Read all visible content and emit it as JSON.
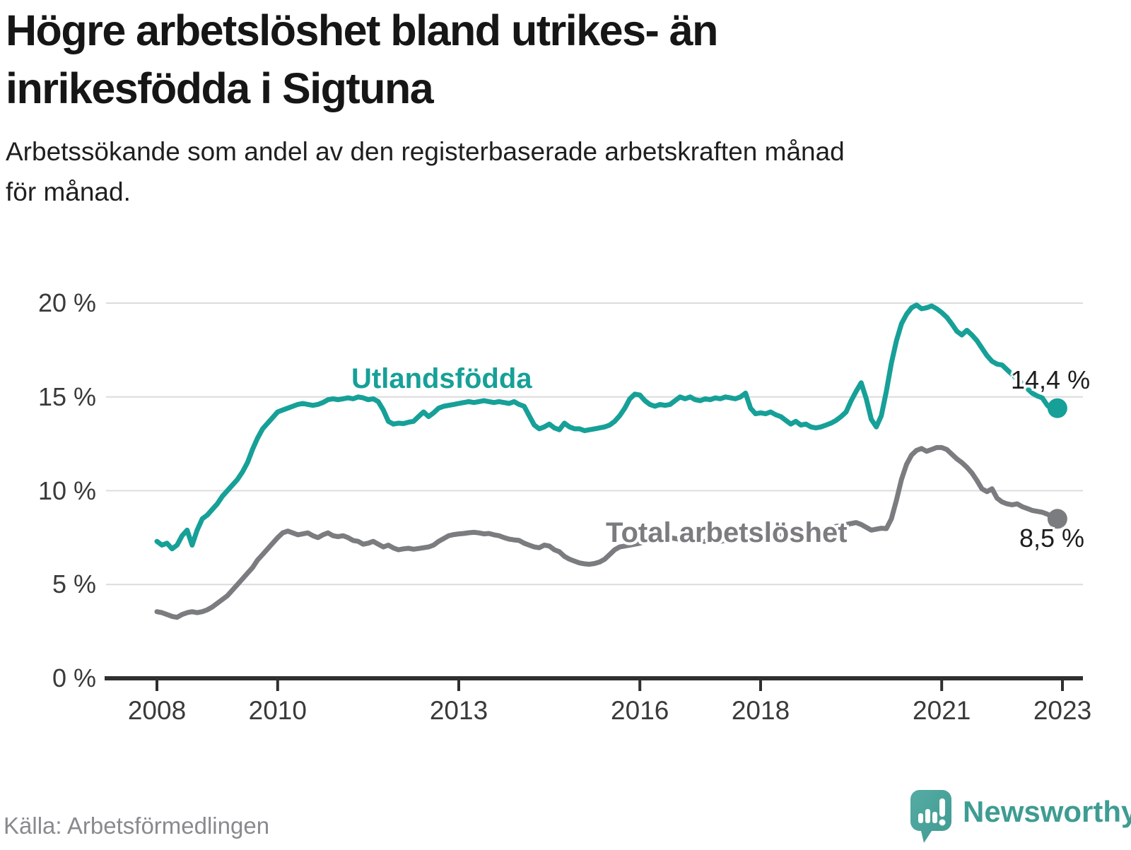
{
  "header": {
    "title_lines": [
      "Högre arbetslöshet bland utrikes- än",
      "inrikesfödda i Sigtuna"
    ],
    "subtitle_lines": [
      "Arbetssökande som andel av den registerbaserade arbetskraften månad",
      "för månad."
    ]
  },
  "footer": {
    "source": "Källa: Arbetsförmedlingen",
    "brand_name": "Newsworthy"
  },
  "chart_data": {
    "type": "line",
    "title": "Högre arbetslöshet bland utrikes- än inrikesfödda i Sigtuna",
    "subtitle": "Arbetssökande som andel av den registerbaserade arbetskraften månad för månad.",
    "unit": "%",
    "x_start": "2008-01",
    "x_end": "2022-12",
    "x_frequency": "monthly",
    "ylim": [
      0,
      20
    ],
    "grid": "horizontal",
    "legend_position": "inline-labels",
    "y_ticks": [
      {
        "label": "0 %",
        "value": 0
      },
      {
        "label": "5 %",
        "value": 5
      },
      {
        "label": "10 %",
        "value": 10
      },
      {
        "label": "15 %",
        "value": 15
      },
      {
        "label": "20 %",
        "value": 20
      }
    ],
    "x_ticks": [
      {
        "label": "2008",
        "month": 0
      },
      {
        "label": "2010",
        "month": 24
      },
      {
        "label": "2013",
        "month": 60
      },
      {
        "label": "2016",
        "month": 96
      },
      {
        "label": "2018",
        "month": 120
      },
      {
        "label": "2021",
        "month": 156
      },
      {
        "label": "2023",
        "month": 180
      }
    ],
    "colors": {
      "grid": "#dcdcdc",
      "axis": "#2f2f2f",
      "tick_text": "#3a3a3a",
      "value_label_text": "#1d1d1d"
    },
    "series": [
      {
        "name": "Utlandsfödda",
        "color": "#16a098",
        "end_label": "14,4 %",
        "end_value": 14.4,
        "values": [
          7.3,
          7.1,
          7.2,
          6.9,
          7.1,
          7.6,
          7.9,
          7.1,
          7.9,
          8.5,
          8.7,
          9.0,
          9.3,
          9.7,
          10.0,
          10.3,
          10.6,
          11.0,
          11.5,
          12.2,
          12.8,
          13.3,
          13.6,
          13.9,
          14.2,
          14.3,
          14.4,
          14.5,
          14.6,
          14.65,
          14.6,
          14.55,
          14.6,
          14.7,
          14.85,
          14.9,
          14.85,
          14.9,
          14.95,
          14.9,
          15.0,
          14.95,
          14.85,
          14.9,
          14.75,
          14.3,
          13.7,
          13.55,
          13.6,
          13.58,
          13.65,
          13.7,
          13.95,
          14.2,
          13.95,
          14.15,
          14.4,
          14.5,
          14.55,
          14.6,
          14.65,
          14.7,
          14.75,
          14.7,
          14.75,
          14.8,
          14.75,
          14.7,
          14.75,
          14.7,
          14.65,
          14.75,
          14.6,
          14.5,
          14.0,
          13.5,
          13.3,
          13.4,
          13.55,
          13.35,
          13.25,
          13.6,
          13.4,
          13.3,
          13.3,
          13.2,
          13.25,
          13.3,
          13.35,
          13.4,
          13.5,
          13.7,
          14.0,
          14.4,
          14.9,
          15.15,
          15.1,
          14.8,
          14.6,
          14.5,
          14.6,
          14.55,
          14.6,
          14.8,
          15.0,
          14.9,
          15.0,
          14.85,
          14.8,
          14.9,
          14.85,
          14.95,
          14.9,
          15.0,
          14.95,
          14.9,
          15.0,
          15.2,
          14.4,
          14.1,
          14.15,
          14.1,
          14.2,
          14.05,
          13.95,
          13.75,
          13.55,
          13.7,
          13.5,
          13.55,
          13.4,
          13.35,
          13.4,
          13.5,
          13.6,
          13.75,
          13.95,
          14.2,
          14.8,
          15.3,
          15.75,
          14.9,
          13.8,
          13.4,
          14.0,
          15.3,
          16.8,
          18.0,
          18.9,
          19.4,
          19.75,
          19.9,
          19.7,
          19.75,
          19.85,
          19.7,
          19.5,
          19.25,
          18.9,
          18.5,
          18.3,
          18.55,
          18.3,
          18.0,
          17.6,
          17.2,
          16.9,
          16.75,
          16.7,
          16.45,
          16.2,
          15.95,
          15.7,
          15.45,
          15.2,
          15.05,
          14.95,
          14.55,
          14.3,
          14.4
        ]
      },
      {
        "name": "Total arbetslöshet",
        "color": "#7b7c80",
        "end_label": "8,5 %",
        "end_value": 8.5,
        "values": [
          3.55,
          3.5,
          3.4,
          3.3,
          3.25,
          3.4,
          3.5,
          3.55,
          3.5,
          3.55,
          3.65,
          3.8,
          4.0,
          4.2,
          4.4,
          4.7,
          5.0,
          5.3,
          5.6,
          5.9,
          6.3,
          6.6,
          6.9,
          7.2,
          7.5,
          7.75,
          7.85,
          7.75,
          7.65,
          7.7,
          7.75,
          7.6,
          7.5,
          7.65,
          7.75,
          7.6,
          7.55,
          7.6,
          7.5,
          7.35,
          7.3,
          7.15,
          7.2,
          7.3,
          7.15,
          7.0,
          7.1,
          6.95,
          6.85,
          6.9,
          6.93,
          6.88,
          6.92,
          6.96,
          7.0,
          7.1,
          7.3,
          7.45,
          7.6,
          7.66,
          7.7,
          7.72,
          7.76,
          7.78,
          7.75,
          7.7,
          7.72,
          7.65,
          7.6,
          7.5,
          7.42,
          7.38,
          7.35,
          7.2,
          7.1,
          7.0,
          6.96,
          7.1,
          7.05,
          6.85,
          6.75,
          6.5,
          6.35,
          6.25,
          6.15,
          6.1,
          6.08,
          6.12,
          6.2,
          6.35,
          6.6,
          6.85,
          7.0,
          7.05,
          7.1,
          7.15,
          7.2,
          7.3,
          7.35,
          7.4,
          7.45,
          7.5,
          7.5,
          7.45,
          7.4,
          7.4,
          7.35,
          7.3,
          7.3,
          7.3,
          7.35,
          7.3,
          7.3,
          7.35,
          7.4,
          7.4,
          7.45,
          7.5,
          7.5,
          7.55,
          7.6,
          7.6,
          7.65,
          7.6,
          7.6,
          7.65,
          7.7,
          7.7,
          7.75,
          7.8,
          7.8,
          7.85,
          7.9,
          7.95,
          8.0,
          8.1,
          8.15,
          8.2,
          8.25,
          8.3,
          8.2,
          8.05,
          7.9,
          7.95,
          8.0,
          7.98,
          8.5,
          9.5,
          10.6,
          11.4,
          11.9,
          12.15,
          12.25,
          12.1,
          12.2,
          12.3,
          12.3,
          12.2,
          11.95,
          11.7,
          11.5,
          11.25,
          10.95,
          10.55,
          10.1,
          9.95,
          10.1,
          9.6,
          9.4,
          9.3,
          9.25,
          9.3,
          9.15,
          9.05,
          8.95,
          8.9,
          8.85,
          8.75,
          8.6,
          8.5
        ]
      }
    ]
  }
}
